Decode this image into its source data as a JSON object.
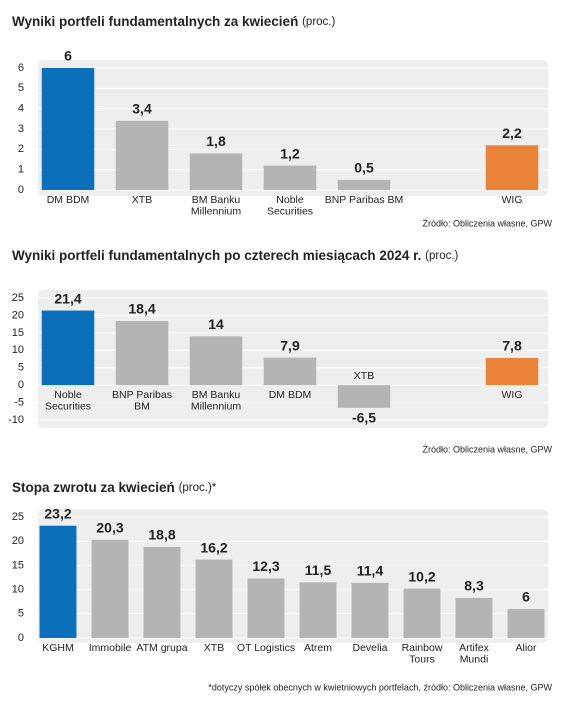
{
  "chart_data": [
    {
      "type": "bar",
      "title": "Wyniki portfeli fundamentalnych za kwiecień",
      "unit": "(proc.)",
      "categories": [
        "DM BDM",
        "XTB",
        "BM Banku\nMillennium",
        "Noble\nSecurities",
        "BNP Paribas BM",
        null,
        "WIG"
      ],
      "values": [
        6,
        3.4,
        1.8,
        1.2,
        0.5,
        null,
        2.2
      ],
      "value_labels": [
        "6",
        "3,4",
        "1,8",
        "1,2",
        "0,5",
        null,
        "2,2"
      ],
      "colors": [
        "#0b6fba",
        "#b4b4b4",
        "#b4b4b4",
        "#b4b4b4",
        "#b4b4b4",
        null,
        "#e9833a"
      ],
      "ylim": [
        0,
        6
      ],
      "yticks": [
        0,
        1,
        2,
        3,
        4,
        5,
        6
      ],
      "grid": true,
      "source": "Źródło: Obliczenia własne, GPW"
    },
    {
      "type": "bar",
      "title": "Wyniki portfeli fundamentalnych po czterech miesiącach 2024 r.",
      "unit": "(proc.)",
      "categories": [
        "Noble\nSecurities",
        "BNP Paribas\nBM",
        "BM Banku\nMillennium",
        "DM BDM",
        "XTB",
        null,
        "WIG"
      ],
      "values": [
        21.4,
        18.4,
        14,
        7.9,
        -6.5,
        null,
        7.8
      ],
      "value_labels": [
        "21,4",
        "18,4",
        "14",
        "7,9",
        "-6,5",
        null,
        "7,8"
      ],
      "colors": [
        "#0b6fba",
        "#b4b4b4",
        "#b4b4b4",
        "#b4b4b4",
        "#b4b4b4",
        null,
        "#e9833a"
      ],
      "ylim": [
        -10,
        25
      ],
      "yticks": [
        -10,
        -5,
        0,
        5,
        10,
        15,
        20,
        25
      ],
      "grid": true,
      "source": "Źródło: Obliczenia własne, GPW"
    },
    {
      "type": "bar",
      "title": "Stopa zwrotu za kwiecień",
      "unit": "(proc.)*",
      "categories": [
        "KGHM",
        "Immobile",
        "ATM grupa",
        "XTB",
        "OT Logistics",
        "Atrem",
        "Develia",
        "Rainbow\nTours",
        "Artifex\nMundi",
        "Alior"
      ],
      "values": [
        23.2,
        20.3,
        18.8,
        16.2,
        12.3,
        11.5,
        11.4,
        10.2,
        8.3,
        6
      ],
      "value_labels": [
        "23,2",
        "20,3",
        "18,8",
        "16,2",
        "12,3",
        "11,5",
        "11,4",
        "10,2",
        "8,3",
        "6"
      ],
      "colors": [
        "#0b6fba",
        "#b4b4b4",
        "#b4b4b4",
        "#b4b4b4",
        "#b4b4b4",
        "#b4b4b4",
        "#b4b4b4",
        "#b4b4b4",
        "#b4b4b4",
        "#b4b4b4"
      ],
      "ylim": [
        0,
        25
      ],
      "yticks": [
        0,
        5,
        10,
        15,
        20,
        25
      ],
      "grid": true,
      "source": "*dotyczy spółek obecnych w kwietniowych portfelach, źródło: Obliczenia własne, GPW"
    }
  ]
}
